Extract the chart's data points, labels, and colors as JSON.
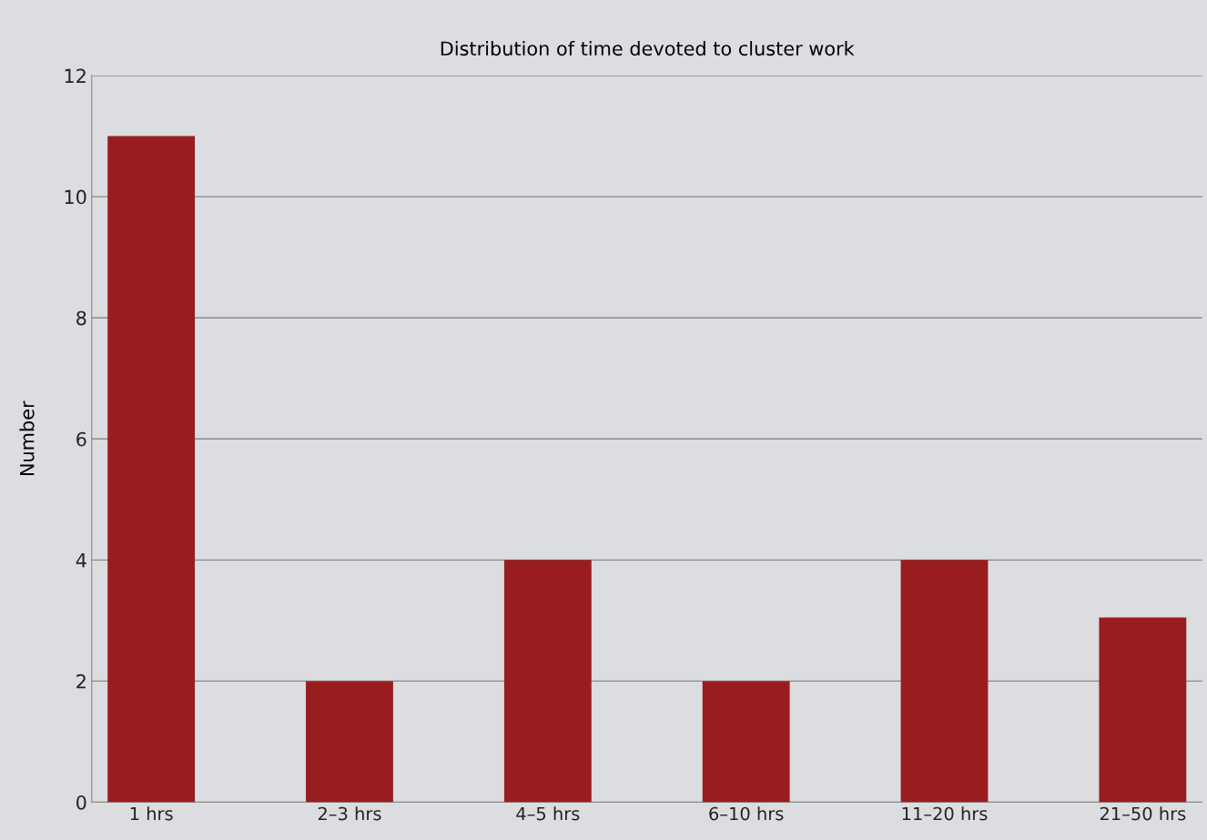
{
  "chart_data": {
    "type": "bar",
    "title": "Distribution of time devoted to cluster work",
    "ylabel": "Number",
    "categories": [
      "1 hrs",
      "2–3 hrs",
      "4–5 hrs",
      "6–10 hrs",
      "11–20 hrs",
      "21–50 hrs"
    ],
    "values": [
      11,
      2,
      4,
      2,
      4,
      3.05
    ],
    "color": "#991d20",
    "ylim": [
      0,
      12
    ],
    "yticks": [
      0,
      2,
      4,
      6,
      8,
      10,
      12
    ],
    "grid": "y",
    "legend": false
  }
}
